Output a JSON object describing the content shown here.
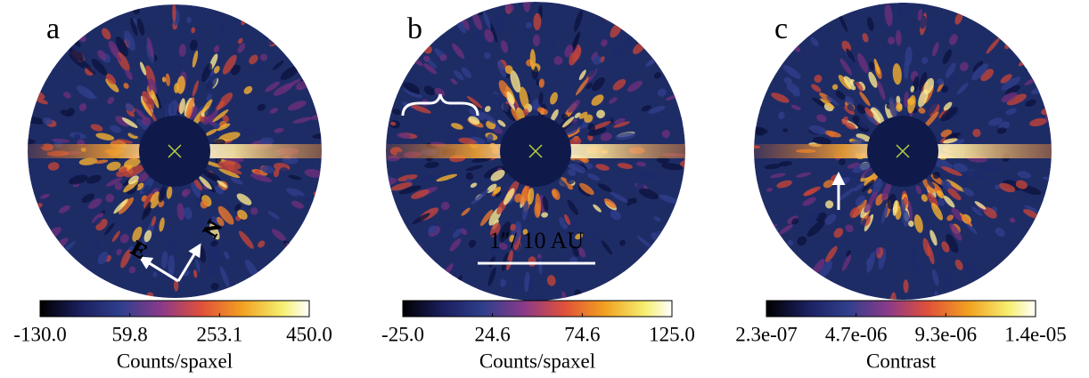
{
  "panels": [
    {
      "label": "a",
      "colorbar": {
        "ticks": [
          "-130.0",
          "59.8",
          "253.1",
          "450.0"
        ],
        "label": "Counts/spaxel"
      },
      "compass": {
        "east": "E",
        "north": "N"
      }
    },
    {
      "label": "b",
      "colorbar": {
        "ticks": [
          "-25.0",
          "24.6",
          "74.6",
          "125.0"
        ],
        "label": "Counts/spaxel"
      },
      "scale_bar": "1″/ 10 AU"
    },
    {
      "label": "c",
      "colorbar": {
        "ticks": [
          "2.3e-07",
          "4.7e-06",
          "9.3e-06",
          "1.4e-05"
        ],
        "label": "Contrast"
      }
    }
  ]
}
